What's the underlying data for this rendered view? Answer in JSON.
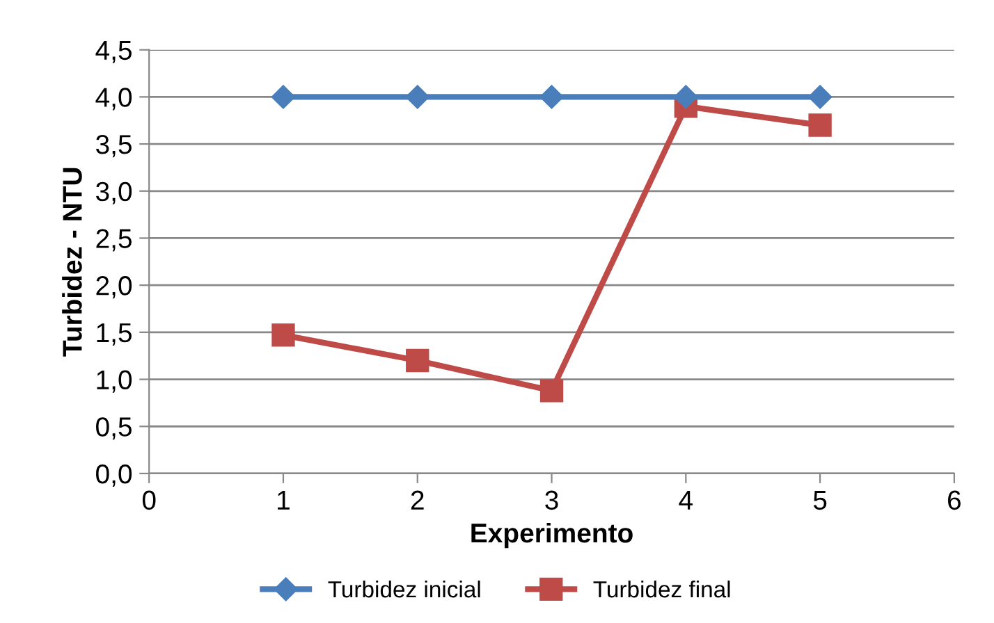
{
  "chart_data": {
    "type": "line",
    "xlabel": "Experimento",
    "ylabel": "Turbidez - NTU",
    "series": [
      {
        "name": "Turbidez inicial",
        "color": "#4a7ebb",
        "marker": "diamond",
        "x": [
          1,
          2,
          3,
          4,
          5
        ],
        "values": [
          4.0,
          4.0,
          4.0,
          4.0,
          4.0
        ]
      },
      {
        "name": "Turbidez final",
        "color": "#be4b48",
        "marker": "square",
        "x": [
          1,
          2,
          3,
          4,
          5
        ],
        "values": [
          1.47,
          1.2,
          0.88,
          3.9,
          3.7
        ]
      }
    ],
    "xlim": [
      0,
      6
    ],
    "xticks": [
      0,
      1,
      2,
      3,
      4,
      5,
      6
    ],
    "ylim": [
      0,
      4.5
    ],
    "yticks": [
      {
        "value": 0,
        "label": "0,0"
      },
      {
        "value": 0.5,
        "label": "0,5"
      },
      {
        "value": 1,
        "label": "1,0"
      },
      {
        "value": 1.5,
        "label": "1,5"
      },
      {
        "value": 2,
        "label": "2,0"
      },
      {
        "value": 2.5,
        "label": "2,5"
      },
      {
        "value": 3,
        "label": "3,0"
      },
      {
        "value": 3.5,
        "label": "3,5"
      },
      {
        "value": 4,
        "label": "4,0"
      },
      {
        "value": 4.5,
        "label": "4,5"
      }
    ],
    "grid": "y",
    "legend": "bottom",
    "line_style": "solid"
  }
}
